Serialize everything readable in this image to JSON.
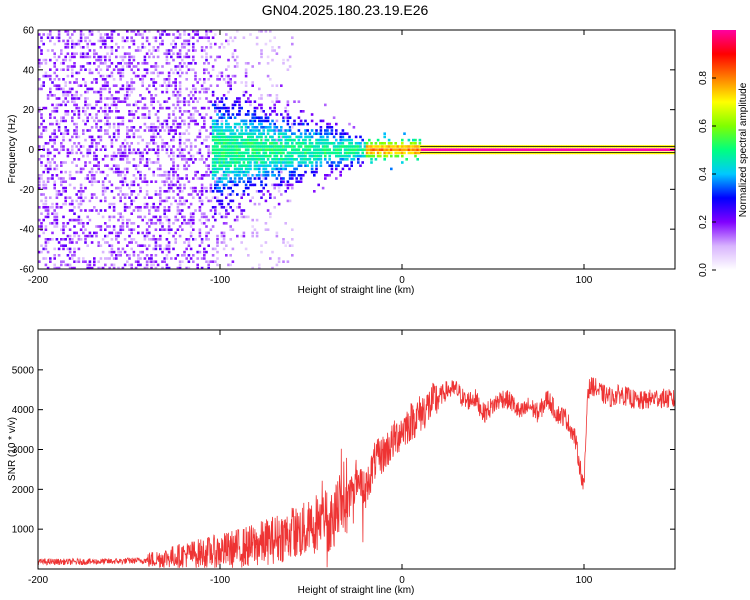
{
  "title": "GN04.2025.180.23.19.E26",
  "chart_data": [
    {
      "type": "heatmap",
      "xlabel": "Height of straight line (km)",
      "ylabel": "Frequency (Hz)",
      "xlim": [
        -200,
        150
      ],
      "ylim": [
        -60,
        60
      ],
      "xticks": [
        -200,
        -100,
        0,
        100
      ],
      "yticks": [
        -60,
        -40,
        -20,
        0,
        20,
        40,
        60
      ],
      "colorbar": {
        "label": "Normalized spectral amplitude",
        "range": [
          0,
          1
        ],
        "ticks": [
          0.0,
          0.2,
          0.4,
          0.6,
          0.8
        ],
        "colormap": [
          "#ffffff",
          "#d8b4fe",
          "#8000ff",
          "#0000ff",
          "#00c8ff",
          "#00ff80",
          "#80ff00",
          "#ffff00",
          "#ff8000",
          "#ff0000",
          "#ff00a0"
        ]
      },
      "regions": [
        {
          "x": [
            -200,
            -105
          ],
          "freq_spread_hz": 60,
          "amplitude": 0.1,
          "description": "noise"
        },
        {
          "x": [
            -120,
            -20
          ],
          "freq_spread_hz": 15,
          "amplitude": 0.35
        },
        {
          "x": [
            -20,
            10
          ],
          "freq_spread_hz": 4,
          "amplitude": 0.7
        },
        {
          "x": [
            10,
            150
          ],
          "freq_spread_hz": 1.5,
          "amplitude": 1.0
        }
      ]
    },
    {
      "type": "line",
      "xlabel": "Height of straight line (km)",
      "ylabel": "SNR (10 * v/v)",
      "xlim": [
        -200,
        150
      ],
      "ylim": [
        0,
        6000
      ],
      "xticks": [
        -200,
        -100,
        0,
        100
      ],
      "yticks": [
        1000,
        2000,
        3000,
        4000,
        5000
      ],
      "color": "#ee3333",
      "series": [
        {
          "x": [
            -200,
            -180,
            -160,
            -140,
            -130,
            -120,
            -110,
            -100,
            -90,
            -80,
            -70,
            -60,
            -50,
            -45,
            -40,
            -35,
            -30,
            -25,
            -20,
            -15,
            -10,
            -5,
            0,
            5,
            10,
            15,
            20,
            25,
            30,
            35,
            40,
            45,
            50,
            55,
            60,
            65,
            70,
            75,
            80,
            85,
            90,
            95,
            100,
            102,
            105,
            110,
            115,
            120,
            130,
            140,
            150
          ],
          "values": [
            180,
            180,
            190,
            220,
            280,
            350,
            400,
            450,
            520,
            600,
            750,
            900,
            1000,
            1300,
            1200,
            1600,
            1700,
            2300,
            2000,
            2700,
            2900,
            3200,
            3500,
            3700,
            3900,
            4100,
            4300,
            4500,
            4500,
            4200,
            4300,
            3900,
            4100,
            4300,
            4200,
            3900,
            4100,
            3900,
            4300,
            3900,
            3800,
            3300,
            2000,
            4500,
            4600,
            4400,
            4300,
            4400,
            4200,
            4300,
            4250
          ]
        }
      ]
    }
  ]
}
